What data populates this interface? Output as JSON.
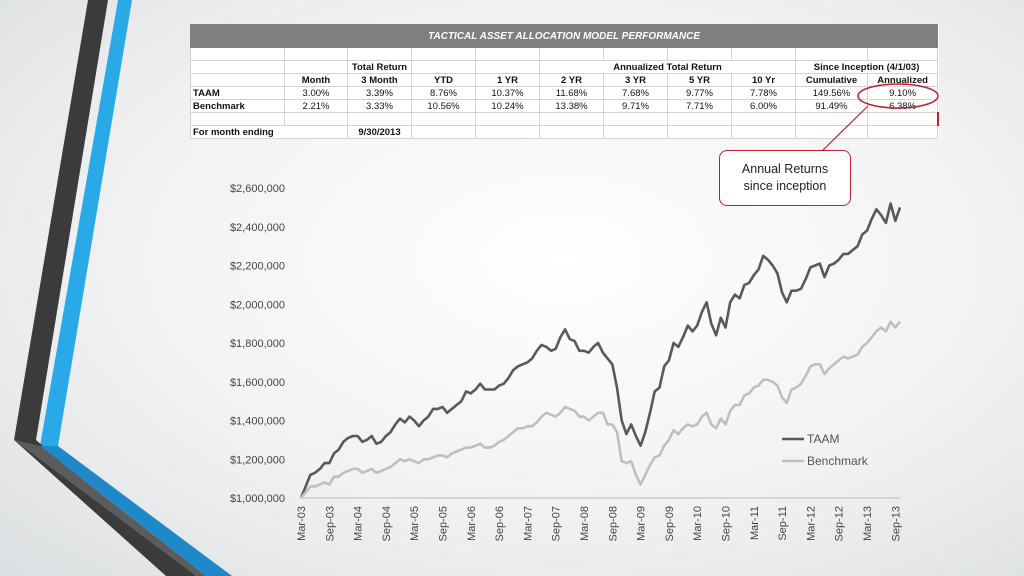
{
  "table": {
    "title": "TACTICAL ASSET ALLOCATION MODEL PERFORMANCE",
    "group_headers": {
      "total_return": "Total Return",
      "annualized": "Annualized Total Return",
      "since_inception": "Since Inception (4/1/03)"
    },
    "columns": [
      "Month",
      "3 Month",
      "YTD",
      "1 YR",
      "2 YR",
      "3 YR",
      "5 YR",
      "10 Yr",
      "Cumulative",
      "Annualized"
    ],
    "rows": [
      {
        "label": "TAAM",
        "values": [
          "3.00%",
          "3.39%",
          "8.76%",
          "10.37%",
          "11.68%",
          "7.68%",
          "9.77%",
          "7.78%",
          "149.56%",
          "9.10%"
        ]
      },
      {
        "label": "Benchmark",
        "values": [
          "2.21%",
          "3.33%",
          "10.56%",
          "10.24%",
          "13.38%",
          "9.71%",
          "7.71%",
          "6.00%",
          "91.49%",
          "6.38%"
        ]
      }
    ],
    "footer": {
      "label": "For month ending",
      "value": "9/30/2013"
    }
  },
  "callout": {
    "line1": "Annual Returns",
    "line2": "since inception"
  },
  "colors": {
    "taam": "#595959",
    "benchmark": "#bfbfbf",
    "callout": "#c0202a",
    "table_title_bg": "#7f7f7f",
    "deco_blue": "#29a9e8",
    "deco_dark": "#3b3b3b"
  },
  "chart_data": {
    "type": "line",
    "xlabel": "",
    "ylabel": "",
    "ylim": [
      1000000,
      2600000
    ],
    "yticks": [
      1000000,
      1200000,
      1400000,
      1600000,
      1800000,
      2000000,
      2200000,
      2400000,
      2600000
    ],
    "ytick_labels": [
      "$1,000,000",
      "$1,200,000",
      "$1,400,000",
      "$1,600,000",
      "$1,800,000",
      "$2,000,000",
      "$2,200,000",
      "$2,400,000",
      "$2,600,000"
    ],
    "xtick_labels": [
      "Mar-03",
      "Sep-03",
      "Mar-04",
      "Sep-04",
      "Mar-05",
      "Sep-05",
      "Mar-06",
      "Sep-06",
      "Mar-07",
      "Sep-07",
      "Mar-08",
      "Sep-08",
      "Mar-09",
      "Sep-09",
      "Mar-10",
      "Sep-10",
      "Mar-11",
      "Sep-11",
      "Mar-12",
      "Sep-12",
      "Mar-13",
      "Sep-13"
    ],
    "x_months_per_tick": 6,
    "grid": false,
    "legend_position": "right",
    "series": [
      {
        "name": "TAAM",
        "points": [
          [
            0,
            1000000
          ],
          [
            1,
            1060000
          ],
          [
            2,
            1120000
          ],
          [
            3,
            1130000
          ],
          [
            4,
            1150000
          ],
          [
            5,
            1180000
          ],
          [
            6,
            1180000
          ],
          [
            7,
            1230000
          ],
          [
            8,
            1250000
          ],
          [
            9,
            1290000
          ],
          [
            10,
            1310000
          ],
          [
            11,
            1320000
          ],
          [
            12,
            1320000
          ],
          [
            13,
            1290000
          ],
          [
            14,
            1300000
          ],
          [
            15,
            1320000
          ],
          [
            16,
            1280000
          ],
          [
            17,
            1290000
          ],
          [
            18,
            1320000
          ],
          [
            19,
            1340000
          ],
          [
            20,
            1380000
          ],
          [
            21,
            1410000
          ],
          [
            22,
            1390000
          ],
          [
            23,
            1420000
          ],
          [
            24,
            1400000
          ],
          [
            25,
            1370000
          ],
          [
            26,
            1400000
          ],
          [
            27,
            1420000
          ],
          [
            28,
            1460000
          ],
          [
            29,
            1460000
          ],
          [
            30,
            1470000
          ],
          [
            31,
            1440000
          ],
          [
            32,
            1460000
          ],
          [
            33,
            1480000
          ],
          [
            34,
            1500000
          ],
          [
            35,
            1550000
          ],
          [
            36,
            1540000
          ],
          [
            37,
            1560000
          ],
          [
            38,
            1590000
          ],
          [
            39,
            1560000
          ],
          [
            40,
            1560000
          ],
          [
            41,
            1560000
          ],
          [
            42,
            1580000
          ],
          [
            43,
            1590000
          ],
          [
            44,
            1620000
          ],
          [
            45,
            1660000
          ],
          [
            46,
            1680000
          ],
          [
            47,
            1690000
          ],
          [
            48,
            1700000
          ],
          [
            49,
            1720000
          ],
          [
            50,
            1760000
          ],
          [
            51,
            1790000
          ],
          [
            52,
            1780000
          ],
          [
            53,
            1760000
          ],
          [
            54,
            1770000
          ],
          [
            55,
            1830000
          ],
          [
            56,
            1870000
          ],
          [
            57,
            1820000
          ],
          [
            58,
            1810000
          ],
          [
            59,
            1760000
          ],
          [
            60,
            1760000
          ],
          [
            61,
            1750000
          ],
          [
            62,
            1780000
          ],
          [
            63,
            1800000
          ],
          [
            64,
            1750000
          ],
          [
            65,
            1720000
          ],
          [
            66,
            1690000
          ],
          [
            67,
            1570000
          ],
          [
            68,
            1400000
          ],
          [
            69,
            1330000
          ],
          [
            70,
            1380000
          ],
          [
            71,
            1320000
          ],
          [
            72,
            1270000
          ],
          [
            73,
            1340000
          ],
          [
            74,
            1440000
          ],
          [
            75,
            1550000
          ],
          [
            76,
            1570000
          ],
          [
            77,
            1680000
          ],
          [
            78,
            1710000
          ],
          [
            79,
            1800000
          ],
          [
            80,
            1780000
          ],
          [
            81,
            1830000
          ],
          [
            82,
            1890000
          ],
          [
            83,
            1860000
          ],
          [
            84,
            1890000
          ],
          [
            85,
            1960000
          ],
          [
            86,
            2010000
          ],
          [
            87,
            1900000
          ],
          [
            88,
            1840000
          ],
          [
            89,
            1930000
          ],
          [
            90,
            1880000
          ],
          [
            91,
            2010000
          ],
          [
            92,
            2050000
          ],
          [
            93,
            2030000
          ],
          [
            94,
            2100000
          ],
          [
            95,
            2110000
          ],
          [
            96,
            2150000
          ],
          [
            97,
            2180000
          ],
          [
            98,
            2250000
          ],
          [
            99,
            2230000
          ],
          [
            100,
            2200000
          ],
          [
            101,
            2160000
          ],
          [
            102,
            2060000
          ],
          [
            103,
            2010000
          ],
          [
            104,
            2070000
          ],
          [
            105,
            2070000
          ],
          [
            106,
            2080000
          ],
          [
            107,
            2130000
          ],
          [
            108,
            2190000
          ],
          [
            109,
            2200000
          ],
          [
            110,
            2210000
          ],
          [
            111,
            2140000
          ],
          [
            112,
            2200000
          ],
          [
            113,
            2210000
          ],
          [
            114,
            2230000
          ],
          [
            115,
            2260000
          ],
          [
            116,
            2260000
          ],
          [
            117,
            2280000
          ],
          [
            118,
            2300000
          ],
          [
            119,
            2360000
          ],
          [
            120,
            2380000
          ],
          [
            121,
            2440000
          ],
          [
            122,
            2490000
          ],
          [
            123,
            2460000
          ],
          [
            124,
            2420000
          ],
          [
            125,
            2520000
          ],
          [
            126,
            2430000
          ],
          [
            127,
            2500000
          ]
        ]
      },
      {
        "name": "Benchmark",
        "points": [
          [
            0,
            1000000
          ],
          [
            1,
            1030000
          ],
          [
            2,
            1060000
          ],
          [
            3,
            1060000
          ],
          [
            4,
            1070000
          ],
          [
            5,
            1080000
          ],
          [
            6,
            1070000
          ],
          [
            7,
            1110000
          ],
          [
            8,
            1110000
          ],
          [
            9,
            1130000
          ],
          [
            10,
            1140000
          ],
          [
            11,
            1150000
          ],
          [
            12,
            1150000
          ],
          [
            13,
            1130000
          ],
          [
            14,
            1140000
          ],
          [
            15,
            1150000
          ],
          [
            16,
            1130000
          ],
          [
            17,
            1140000
          ],
          [
            18,
            1150000
          ],
          [
            19,
            1160000
          ],
          [
            20,
            1180000
          ],
          [
            21,
            1200000
          ],
          [
            22,
            1190000
          ],
          [
            23,
            1200000
          ],
          [
            24,
            1190000
          ],
          [
            25,
            1180000
          ],
          [
            26,
            1200000
          ],
          [
            27,
            1200000
          ],
          [
            28,
            1210000
          ],
          [
            29,
            1220000
          ],
          [
            30,
            1220000
          ],
          [
            31,
            1210000
          ],
          [
            32,
            1230000
          ],
          [
            33,
            1240000
          ],
          [
            34,
            1250000
          ],
          [
            35,
            1260000
          ],
          [
            36,
            1260000
          ],
          [
            37,
            1270000
          ],
          [
            38,
            1280000
          ],
          [
            39,
            1260000
          ],
          [
            40,
            1260000
          ],
          [
            41,
            1270000
          ],
          [
            42,
            1290000
          ],
          [
            43,
            1300000
          ],
          [
            44,
            1320000
          ],
          [
            45,
            1340000
          ],
          [
            46,
            1360000
          ],
          [
            47,
            1360000
          ],
          [
            48,
            1370000
          ],
          [
            49,
            1370000
          ],
          [
            50,
            1390000
          ],
          [
            51,
            1420000
          ],
          [
            52,
            1440000
          ],
          [
            53,
            1430000
          ],
          [
            54,
            1420000
          ],
          [
            55,
            1440000
          ],
          [
            56,
            1470000
          ],
          [
            57,
            1460000
          ],
          [
            58,
            1450000
          ],
          [
            59,
            1420000
          ],
          [
            60,
            1420000
          ],
          [
            61,
            1400000
          ],
          [
            62,
            1420000
          ],
          [
            63,
            1440000
          ],
          [
            64,
            1440000
          ],
          [
            65,
            1380000
          ],
          [
            66,
            1380000
          ],
          [
            67,
            1340000
          ],
          [
            68,
            1190000
          ],
          [
            69,
            1180000
          ],
          [
            70,
            1190000
          ],
          [
            71,
            1120000
          ],
          [
            72,
            1070000
          ],
          [
            73,
            1120000
          ],
          [
            74,
            1170000
          ],
          [
            75,
            1210000
          ],
          [
            76,
            1220000
          ],
          [
            77,
            1270000
          ],
          [
            78,
            1300000
          ],
          [
            79,
            1350000
          ],
          [
            80,
            1330000
          ],
          [
            81,
            1360000
          ],
          [
            82,
            1380000
          ],
          [
            83,
            1370000
          ],
          [
            84,
            1380000
          ],
          [
            85,
            1420000
          ],
          [
            86,
            1440000
          ],
          [
            87,
            1380000
          ],
          [
            88,
            1360000
          ],
          [
            89,
            1410000
          ],
          [
            90,
            1380000
          ],
          [
            91,
            1450000
          ],
          [
            92,
            1480000
          ],
          [
            93,
            1480000
          ],
          [
            94,
            1530000
          ],
          [
            95,
            1540000
          ],
          [
            96,
            1570000
          ],
          [
            97,
            1580000
          ],
          [
            98,
            1610000
          ],
          [
            99,
            1610000
          ],
          [
            100,
            1600000
          ],
          [
            101,
            1580000
          ],
          [
            102,
            1520000
          ],
          [
            103,
            1490000
          ],
          [
            104,
            1560000
          ],
          [
            105,
            1570000
          ],
          [
            106,
            1590000
          ],
          [
            107,
            1630000
          ],
          [
            108,
            1680000
          ],
          [
            109,
            1690000
          ],
          [
            110,
            1690000
          ],
          [
            111,
            1640000
          ],
          [
            112,
            1670000
          ],
          [
            113,
            1690000
          ],
          [
            114,
            1710000
          ],
          [
            115,
            1730000
          ],
          [
            116,
            1720000
          ],
          [
            117,
            1730000
          ],
          [
            118,
            1740000
          ],
          [
            119,
            1780000
          ],
          [
            120,
            1800000
          ],
          [
            121,
            1830000
          ],
          [
            122,
            1860000
          ],
          [
            123,
            1880000
          ],
          [
            124,
            1860000
          ],
          [
            125,
            1910000
          ],
          [
            126,
            1880000
          ],
          [
            127,
            1910000
          ]
        ]
      }
    ]
  }
}
